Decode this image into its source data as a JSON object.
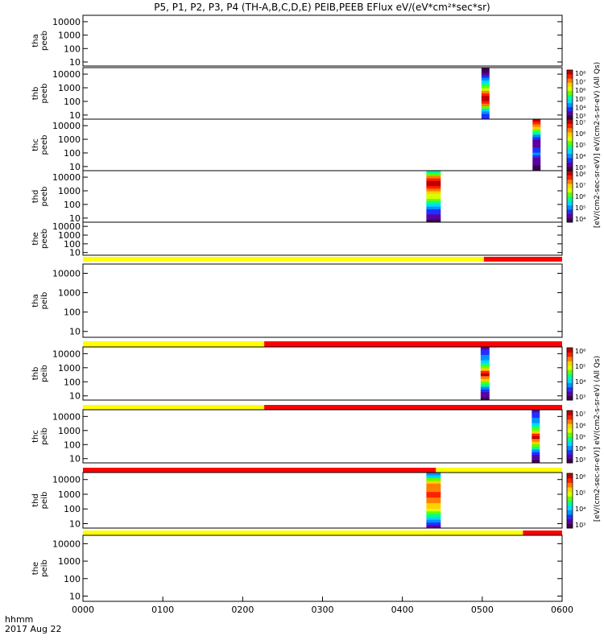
{
  "title": "P5, P1, P2, P3, P4 (TH-A,B,C,D,E) PEIB,PEEB EFlux eV/(eV*cm²*sec*sr)",
  "time_axis": {
    "label": "hhmm",
    "date": "2017 Aug 22",
    "ticks": [
      "0000",
      "0100",
      "0200",
      "0300",
      "0400",
      "0500",
      "0600"
    ],
    "range_hours": [
      0,
      6
    ]
  },
  "energy_ticks": [
    "10",
    "100",
    "1000",
    "10000"
  ],
  "colorbar_units": {
    "peeb": "[eV/(cm2-sec-sr-eV)] eV/(cm2-s-sr-eV) (All Qs)",
    "peib": "[eV/(cm2-sec-sr-eV)] eV/(cm2-s-sr-eV) (All Qs)"
  },
  "colorbars": [
    {
      "panel": "thb peeb",
      "labels": [
        "10³",
        "10⁴",
        "10⁵",
        "10⁶",
        "10⁷",
        "10⁸"
      ]
    },
    {
      "panel": "thc peeb",
      "labels": [
        "10³",
        "10⁴",
        "10⁵",
        "10⁶",
        "10⁷"
      ]
    },
    {
      "panel": "thd peeb",
      "labels": [
        "10⁴",
        "10⁵",
        "10⁶",
        "10⁷",
        "10⁸"
      ]
    },
    {
      "panel": "thb peib",
      "labels": [
        "10³",
        "10⁴",
        "10⁵",
        "10⁶"
      ]
    },
    {
      "panel": "thc peib",
      "labels": [
        "10³",
        "10⁴",
        "10⁵",
        "10⁶",
        "10⁷"
      ]
    },
    {
      "panel": "thd peib",
      "labels": [
        "10³",
        "10⁴",
        "10⁵",
        "10⁶"
      ]
    }
  ],
  "colors": {
    "mode_slow": "#ffff00",
    "mode_fast": "#ff0000"
  },
  "chart_data": [
    {
      "type": "heatmap",
      "probe": "tha",
      "instrument": "peeb",
      "ylim": [
        5,
        30000
      ],
      "yscale": "log",
      "xlim": [
        0,
        6
      ],
      "blocks": []
    },
    {
      "type": "heatmap",
      "probe": "thb",
      "instrument": "peeb",
      "ylim": [
        5,
        30000
      ],
      "yscale": "log",
      "xlim": [
        0,
        6
      ],
      "blocks": [
        {
          "x": [
            4.99,
            5.09
          ],
          "profile": "hot_top"
        }
      ]
    },
    {
      "type": "heatmap",
      "probe": "thc",
      "instrument": "peeb",
      "ylim": [
        5,
        30000
      ],
      "yscale": "log",
      "xlim": [
        0,
        6
      ],
      "blocks": [
        {
          "x": [
            5.63,
            5.73
          ],
          "profile": "hot_low"
        }
      ]
    },
    {
      "type": "heatmap",
      "probe": "thd",
      "instrument": "peeb",
      "ylim": [
        5,
        30000
      ],
      "yscale": "log",
      "xlim": [
        0,
        6
      ],
      "blocks": [
        {
          "x": [
            4.3,
            4.48
          ],
          "profile": "hot_low_wide"
        }
      ]
    },
    {
      "type": "heatmap",
      "probe": "the",
      "instrument": "peeb",
      "ylim": [
        5,
        30000
      ],
      "yscale": "log",
      "xlim": [
        0,
        6
      ],
      "blocks": []
    },
    {
      "type": "mode_bar",
      "segments": [
        {
          "x": [
            0,
            5.02
          ],
          "mode": "slow"
        },
        {
          "x": [
            5.02,
            6
          ],
          "mode": "fast"
        }
      ]
    },
    {
      "type": "heatmap",
      "probe": "tha",
      "instrument": "peib",
      "ylim": [
        5,
        30000
      ],
      "yscale": "log",
      "xlim": [
        0,
        6
      ],
      "blocks": []
    },
    {
      "type": "mode_bar",
      "segments": [
        {
          "x": [
            0,
            2.27
          ],
          "mode": "slow"
        },
        {
          "x": [
            2.27,
            6
          ],
          "mode": "fast"
        }
      ]
    },
    {
      "type": "heatmap",
      "probe": "thb",
      "instrument": "peib",
      "ylim": [
        5,
        30000
      ],
      "yscale": "log",
      "xlim": [
        0,
        6
      ],
      "blocks": [
        {
          "x": [
            4.98,
            5.09
          ],
          "profile": "ion_mid"
        }
      ]
    },
    {
      "type": "mode_bar",
      "segments": [
        {
          "x": [
            0,
            2.27
          ],
          "mode": "slow"
        },
        {
          "x": [
            2.27,
            6
          ],
          "mode": "fast"
        }
      ]
    },
    {
      "type": "heatmap",
      "probe": "thc",
      "instrument": "peib",
      "ylim": [
        5,
        30000
      ],
      "yscale": "log",
      "xlim": [
        0,
        6
      ],
      "blocks": [
        {
          "x": [
            5.62,
            5.72
          ],
          "profile": "ion_mid"
        }
      ]
    },
    {
      "type": "mode_bar",
      "segments": [
        {
          "x": [
            0,
            4.42
          ],
          "mode": "fast"
        },
        {
          "x": [
            4.42,
            6
          ],
          "mode": "slow"
        }
      ]
    },
    {
      "type": "heatmap",
      "probe": "thd",
      "instrument": "peib",
      "ylim": [
        5,
        30000
      ],
      "yscale": "log",
      "xlim": [
        0,
        6
      ],
      "blocks": [
        {
          "x": [
            4.3,
            4.48
          ],
          "profile": "ion_wide"
        }
      ]
    },
    {
      "type": "mode_bar",
      "segments": [
        {
          "x": [
            0,
            5.51
          ],
          "mode": "slow"
        },
        {
          "x": [
            5.51,
            6
          ],
          "mode": "fast"
        }
      ]
    },
    {
      "type": "heatmap",
      "probe": "the",
      "instrument": "peib",
      "ylim": [
        5,
        30000
      ],
      "yscale": "log",
      "xlim": [
        0,
        6
      ],
      "blocks": []
    }
  ]
}
